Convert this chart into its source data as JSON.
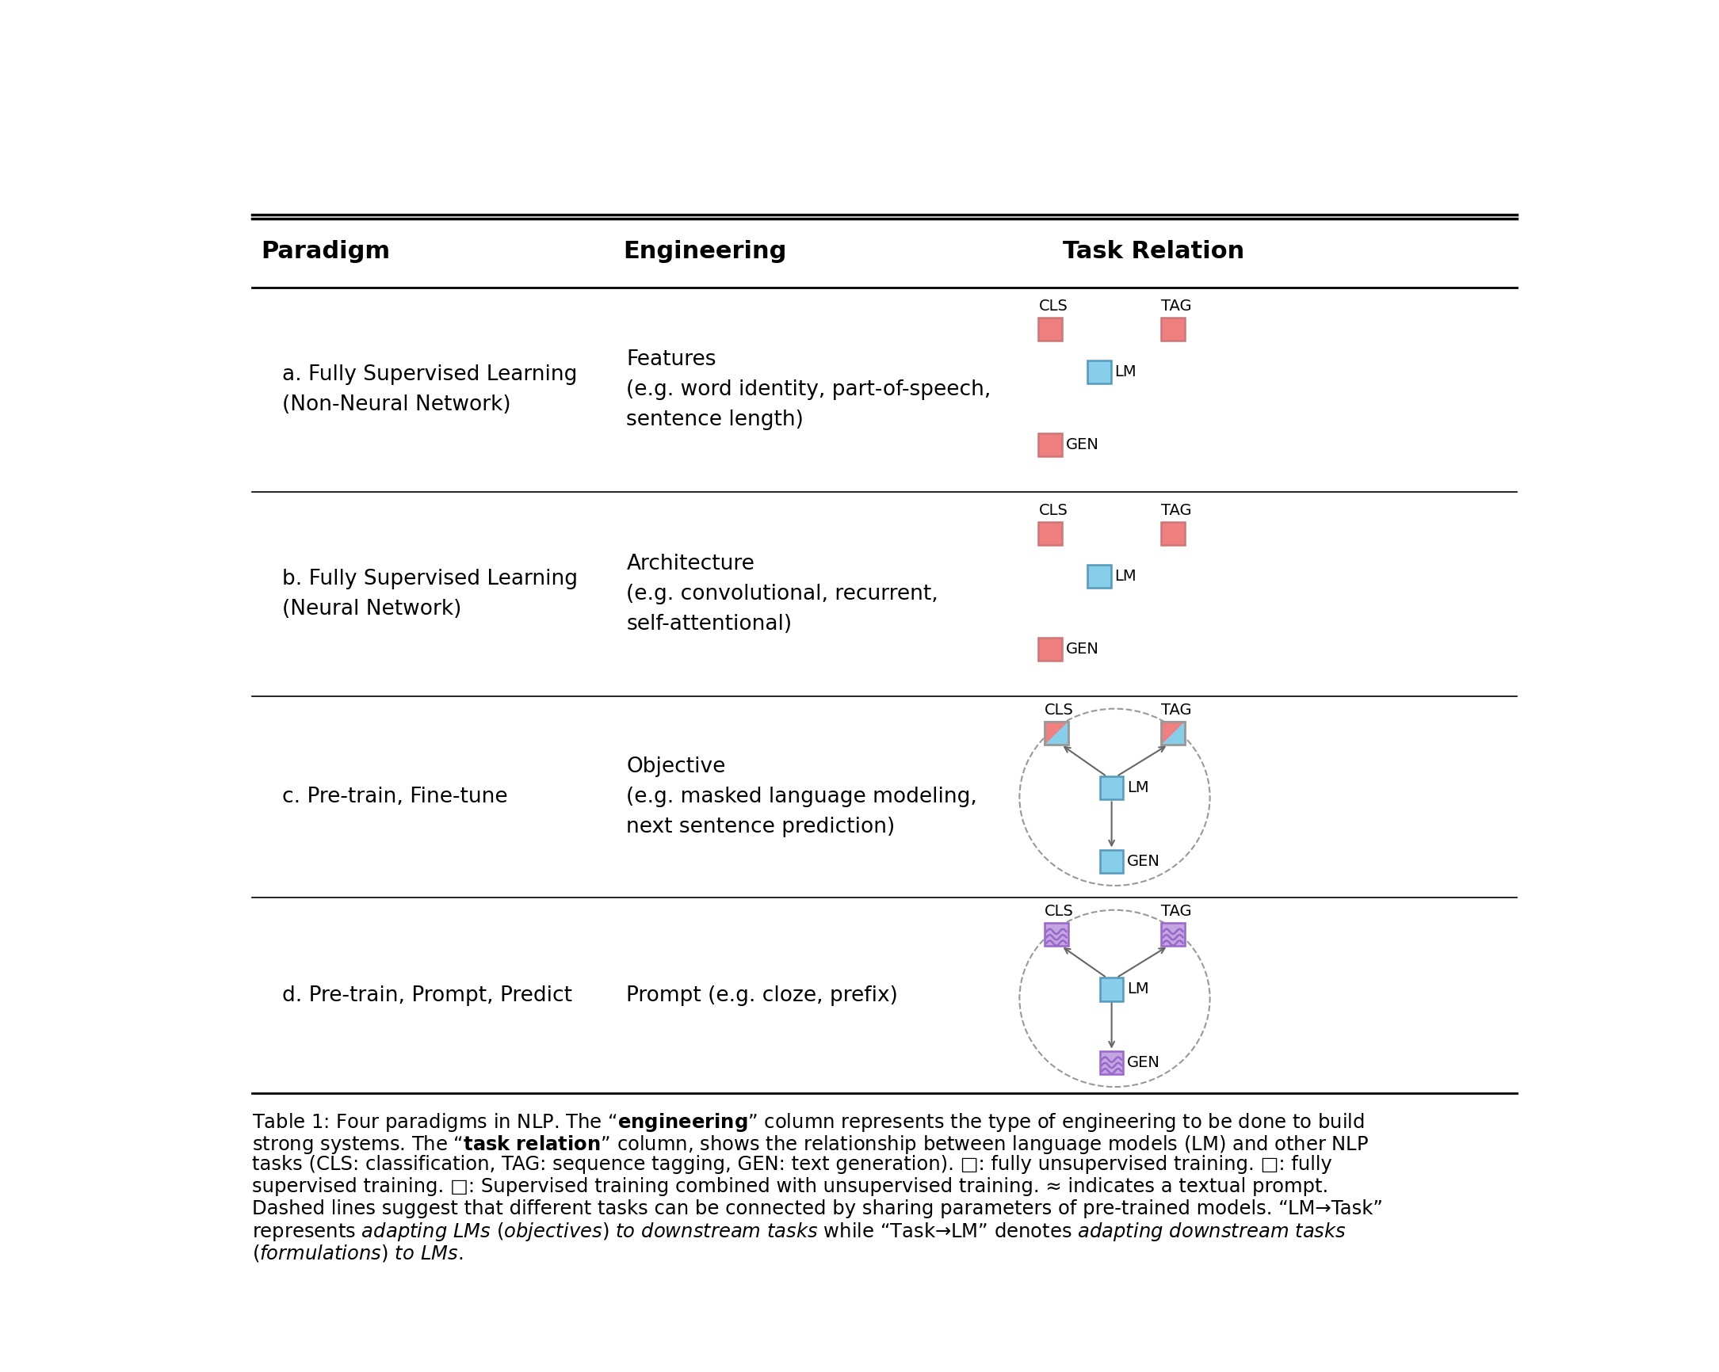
{
  "bg_color": "#ffffff",
  "rows": [
    {
      "paradigm": "a. Fully Supervised Learning\n(Non-Neural Network)",
      "engineering": "Features\n(e.g. word identity, part-of-speech,\nsentence length)",
      "diagram_type": "ab"
    },
    {
      "paradigm": "b. Fully Supervised Learning\n(Neural Network)",
      "engineering": "Architecture\n(e.g. convolutional, recurrent,\nself-attentional)",
      "diagram_type": "ab"
    },
    {
      "paradigm": "c. Pre-train, Fine-tune",
      "engineering": "Objective\n(e.g. masked language modeling,\nnext sentence prediction)",
      "diagram_type": "c"
    },
    {
      "paradigm": "d. Pre-train, Prompt, Predict",
      "engineering": "Prompt (e.g. cloze, prefix)",
      "diagram_type": "d"
    }
  ],
  "col_headers": [
    "Paradigm",
    "Engineering",
    "Task Relation"
  ],
  "color_red": "#F08080",
  "color_blue": "#87CEEB",
  "color_purple": "#C3A6E0",
  "color_gray_edge": "#999999",
  "color_blue_edge": "#5599BB",
  "color_red_edge": "#CC7777",
  "color_purple_edge": "#9966CC"
}
